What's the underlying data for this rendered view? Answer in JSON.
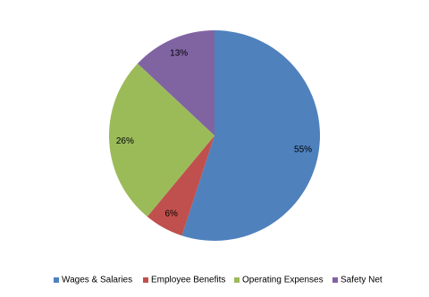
{
  "chart_data": {
    "type": "pie",
    "categories": [
      "Wages & Salaries",
      "Employee Benefits",
      "Operating Expenses",
      "Safety Net"
    ],
    "values": [
      55,
      6,
      26,
      13
    ],
    "value_labels": [
      "55%",
      "6%",
      "26%",
      "13%"
    ],
    "colors": [
      "#4f81bd",
      "#c0504d",
      "#9bbb59",
      "#8064a2"
    ],
    "legend": "bottom"
  }
}
